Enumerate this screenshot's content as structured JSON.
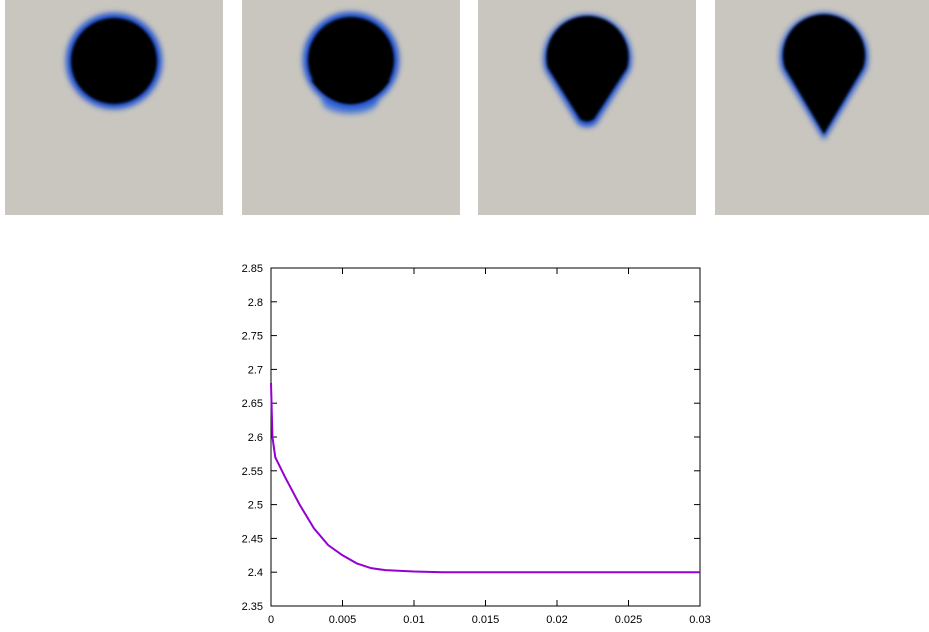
{
  "chart_data": {
    "type": "line",
    "x": [
      0,
      0.0001,
      0.0003,
      0.001,
      0.002,
      0.003,
      0.004,
      0.005,
      0.006,
      0.007,
      0.008,
      0.01,
      0.012,
      0.015,
      0.02,
      0.025,
      0.03
    ],
    "series": [
      {
        "color": "#9400d3",
        "values": [
          2.68,
          2.6,
          2.57,
          2.54,
          2.5,
          2.465,
          2.44,
          2.425,
          2.413,
          2.406,
          2.403,
          2.401,
          2.4,
          2.4,
          2.4,
          2.4,
          2.4
        ]
      }
    ],
    "xlim": [
      0,
      0.03
    ],
    "ylim": [
      2.35,
      2.85
    ],
    "xticks": [
      0,
      0.005,
      0.01,
      0.015,
      0.02,
      0.025,
      0.03
    ],
    "yticks": [
      2.35,
      2.4,
      2.45,
      2.5,
      2.55,
      2.6,
      2.65,
      2.7,
      2.75,
      2.8,
      2.85
    ]
  }
}
